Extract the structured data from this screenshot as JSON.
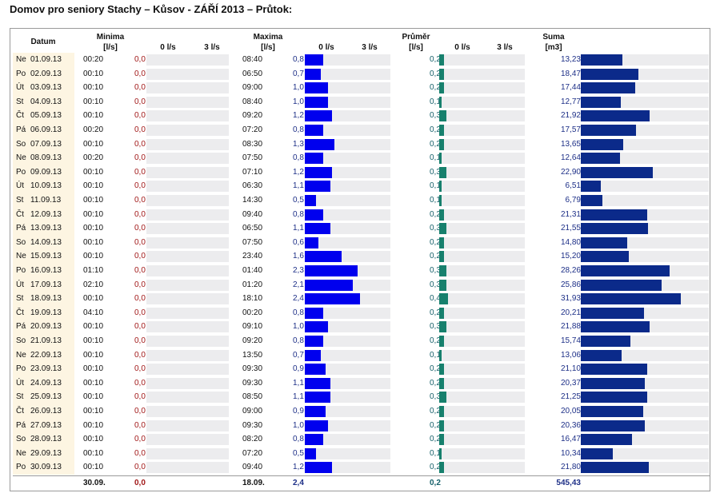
{
  "title": "Domov pro seniory Stachy – Kůsov - ZÁŘÍ 2013 – Průtok:",
  "headers": {
    "datum": "Datum",
    "minima": "Minima",
    "minima_unit": "[l/s]",
    "maxima": "Maxima",
    "maxima_unit": "[l/s]",
    "prumer": "Průměr",
    "prumer_unit": "[l/s]",
    "suma": "Suma",
    "suma_unit": "[m3]",
    "scale_min": "0 l/s",
    "scale_max": "3 l/s"
  },
  "colors": {
    "min_text": "#a11818",
    "max_bar": "#0000ee",
    "max_text": "#1d2f87",
    "avg_bar": "#17806d",
    "avg_text": "#16606a",
    "sum_bar": "#0b2a8a",
    "sum_text": "#1d2f87",
    "track": "#ececee",
    "date_bg": "#fdf5e2"
  },
  "chart_data": {
    "type": "table",
    "bar_scale_l_s": [
      0,
      3
    ],
    "rows": [
      {
        "day": "Ne",
        "date": "01.09.13",
        "min_time": "00:20",
        "min": "0,0",
        "max_time": "08:40",
        "max": "0,8",
        "avg": "0,2",
        "sum": "13,23"
      },
      {
        "day": "Po",
        "date": "02.09.13",
        "min_time": "00:10",
        "min": "0,0",
        "max_time": "06:50",
        "max": "0,7",
        "avg": "0,2",
        "sum": "18,47"
      },
      {
        "day": "Út",
        "date": "03.09.13",
        "min_time": "00:10",
        "min": "0,0",
        "max_time": "09:00",
        "max": "1,0",
        "avg": "0,2",
        "sum": "17,44"
      },
      {
        "day": "St",
        "date": "04.09.13",
        "min_time": "00:10",
        "min": "0,0",
        "max_time": "08:40",
        "max": "1,0",
        "avg": "0,1",
        "sum": "12,77"
      },
      {
        "day": "Čt",
        "date": "05.09.13",
        "min_time": "00:10",
        "min": "0,0",
        "max_time": "09:20",
        "max": "1,2",
        "avg": "0,3",
        "sum": "21,92"
      },
      {
        "day": "Pá",
        "date": "06.09.13",
        "min_time": "00:20",
        "min": "0,0",
        "max_time": "07:20",
        "max": "0,8",
        "avg": "0,2",
        "sum": "17,57"
      },
      {
        "day": "So",
        "date": "07.09.13",
        "min_time": "00:10",
        "min": "0,0",
        "max_time": "08:30",
        "max": "1,3",
        "avg": "0,2",
        "sum": "13,65"
      },
      {
        "day": "Ne",
        "date": "08.09.13",
        "min_time": "00:20",
        "min": "0,0",
        "max_time": "07:50",
        "max": "0,8",
        "avg": "0,1",
        "sum": "12,64"
      },
      {
        "day": "Po",
        "date": "09.09.13",
        "min_time": "00:10",
        "min": "0,0",
        "max_time": "07:10",
        "max": "1,2",
        "avg": "0,3",
        "sum": "22,90"
      },
      {
        "day": "Út",
        "date": "10.09.13",
        "min_time": "00:10",
        "min": "0,0",
        "max_time": "06:30",
        "max": "1,1",
        "avg": "0,1",
        "sum": "6,51"
      },
      {
        "day": "St",
        "date": "11.09.13",
        "min_time": "00:10",
        "min": "0,0",
        "max_time": "14:30",
        "max": "0,5",
        "avg": "0,1",
        "sum": "6,79"
      },
      {
        "day": "Čt",
        "date": "12.09.13",
        "min_time": "00:10",
        "min": "0,0",
        "max_time": "09:40",
        "max": "0,8",
        "avg": "0,2",
        "sum": "21,31"
      },
      {
        "day": "Pá",
        "date": "13.09.13",
        "min_time": "00:10",
        "min": "0,0",
        "max_time": "06:50",
        "max": "1,1",
        "avg": "0,3",
        "sum": "21,55"
      },
      {
        "day": "So",
        "date": "14.09.13",
        "min_time": "00:10",
        "min": "0,0",
        "max_time": "07:50",
        "max": "0,6",
        "avg": "0,2",
        "sum": "14,80"
      },
      {
        "day": "Ne",
        "date": "15.09.13",
        "min_time": "00:10",
        "min": "0,0",
        "max_time": "23:40",
        "max": "1,6",
        "avg": "0,2",
        "sum": "15,20"
      },
      {
        "day": "Po",
        "date": "16.09.13",
        "min_time": "01:10",
        "min": "0,0",
        "max_time": "01:40",
        "max": "2,3",
        "avg": "0,3",
        "sum": "28,26"
      },
      {
        "day": "Út",
        "date": "17.09.13",
        "min_time": "02:10",
        "min": "0,0",
        "max_time": "01:20",
        "max": "2,1",
        "avg": "0,3",
        "sum": "25,86"
      },
      {
        "day": "St",
        "date": "18.09.13",
        "min_time": "00:10",
        "min": "0,0",
        "max_time": "18:10",
        "max": "2,4",
        "avg": "0,4",
        "sum": "31,93"
      },
      {
        "day": "Čt",
        "date": "19.09.13",
        "min_time": "04:10",
        "min": "0,0",
        "max_time": "00:20",
        "max": "0,8",
        "avg": "0,2",
        "sum": "20,21"
      },
      {
        "day": "Pá",
        "date": "20.09.13",
        "min_time": "00:10",
        "min": "0,0",
        "max_time": "09:10",
        "max": "1,0",
        "avg": "0,3",
        "sum": "21,88"
      },
      {
        "day": "So",
        "date": "21.09.13",
        "min_time": "00:10",
        "min": "0,0",
        "max_time": "09:20",
        "max": "0,8",
        "avg": "0,2",
        "sum": "15,74"
      },
      {
        "day": "Ne",
        "date": "22.09.13",
        "min_time": "00:10",
        "min": "0,0",
        "max_time": "13:50",
        "max": "0,7",
        "avg": "0,1",
        "sum": "13,06"
      },
      {
        "day": "Po",
        "date": "23.09.13",
        "min_time": "00:10",
        "min": "0,0",
        "max_time": "09:30",
        "max": "0,9",
        "avg": "0,2",
        "sum": "21,10"
      },
      {
        "day": "Út",
        "date": "24.09.13",
        "min_time": "00:10",
        "min": "0,0",
        "max_time": "09:30",
        "max": "1,1",
        "avg": "0,2",
        "sum": "20,37"
      },
      {
        "day": "St",
        "date": "25.09.13",
        "min_time": "00:10",
        "min": "0,0",
        "max_time": "08:50",
        "max": "1,1",
        "avg": "0,3",
        "sum": "21,25"
      },
      {
        "day": "Čt",
        "date": "26.09.13",
        "min_time": "00:10",
        "min": "0,0",
        "max_time": "09:00",
        "max": "0,9",
        "avg": "0,2",
        "sum": "20,05"
      },
      {
        "day": "Pá",
        "date": "27.09.13",
        "min_time": "00:10",
        "min": "0,0",
        "max_time": "09:30",
        "max": "1,0",
        "avg": "0,2",
        "sum": "20,36"
      },
      {
        "day": "So",
        "date": "28.09.13",
        "min_time": "00:10",
        "min": "0,0",
        "max_time": "08:20",
        "max": "0,8",
        "avg": "0,2",
        "sum": "16,47"
      },
      {
        "day": "Ne",
        "date": "29.09.13",
        "min_time": "00:10",
        "min": "0,0",
        "max_time": "07:20",
        "max": "0,5",
        "avg": "0,1",
        "sum": "10,34"
      },
      {
        "day": "Po",
        "date": "30.09.13",
        "min_time": "00:10",
        "min": "0,0",
        "max_time": "09:40",
        "max": "1,2",
        "avg": "0,2",
        "sum": "21,80"
      }
    ],
    "totals": {
      "min_date": "30.09.",
      "min": "0,0",
      "max_date": "18.09.",
      "max": "2,4",
      "avg": "0,2",
      "sum": "545,43"
    }
  }
}
